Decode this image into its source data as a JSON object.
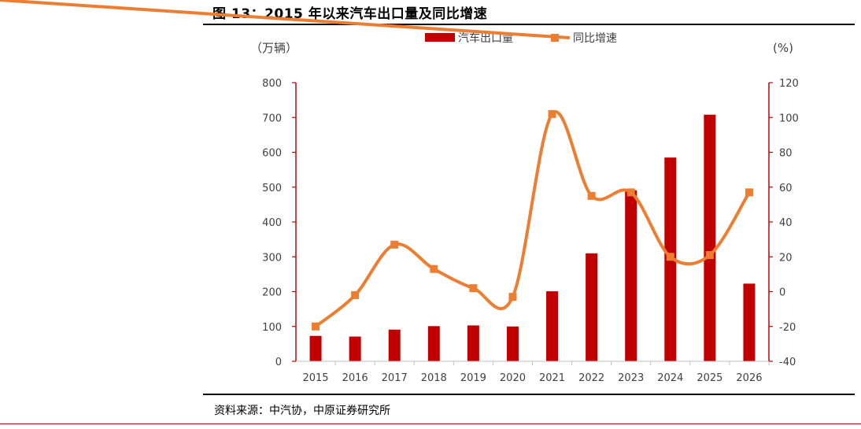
{
  "figure_title": "图 13：2015 年以来汽车出口量及同比增速",
  "source_note": "资料来源：中汽协，中原证券研究所",
  "chart_data": {
    "type": "bar+line",
    "categories": [
      "2015",
      "2016",
      "2017",
      "2018",
      "2019",
      "2020",
      "2021",
      "2022",
      "2023",
      "2024",
      "2025",
      "2026"
    ],
    "series": [
      {
        "name": "汽车出口量",
        "type": "bar",
        "axis": "left",
        "color": "#c00000",
        "values": [
          73,
          71,
          91,
          101,
          103,
          100,
          201,
          310,
          491,
          585,
          708,
          223
        ]
      },
      {
        "name": "同比增速",
        "type": "line",
        "axis": "right",
        "color": "#ed7d31",
        "values": [
          -20,
          -2,
          27,
          13,
          2,
          -3,
          102,
          55,
          57,
          20,
          21,
          57
        ]
      }
    ],
    "y_left": {
      "label": "（万辆）",
      "min": 0,
      "max": 800,
      "ticks": [
        "0",
        "100",
        "200",
        "300",
        "400",
        "500",
        "600",
        "700",
        "800"
      ]
    },
    "y_right": {
      "label": "(%)",
      "min": -40,
      "max": 120,
      "ticks": [
        "-40",
        "-20",
        "0",
        "20",
        "40",
        "60",
        "80",
        "100",
        "120"
      ]
    },
    "grid": false,
    "legend_position": "top"
  }
}
